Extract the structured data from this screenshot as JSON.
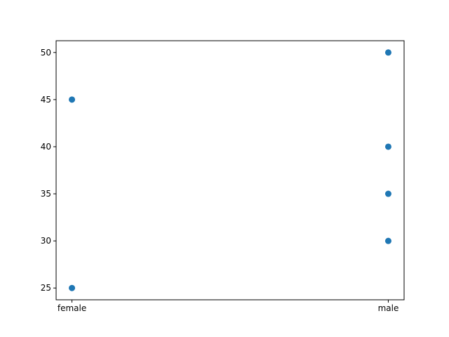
{
  "chart_data": {
    "type": "scatter",
    "title": "",
    "xlabel": "",
    "ylabel": "",
    "categories": [
      "female",
      "male"
    ],
    "points": [
      {
        "x": "female",
        "y": 45
      },
      {
        "x": "female",
        "y": 25
      },
      {
        "x": "male",
        "y": 50
      },
      {
        "x": "male",
        "y": 40
      },
      {
        "x": "male",
        "y": 35
      },
      {
        "x": "male",
        "y": 30
      }
    ],
    "yticks": [
      25,
      30,
      35,
      40,
      45,
      50
    ],
    "ylim": [
      23.75,
      51.25
    ],
    "grid": false,
    "legend": "none",
    "marker_color": "#1f77b4"
  }
}
